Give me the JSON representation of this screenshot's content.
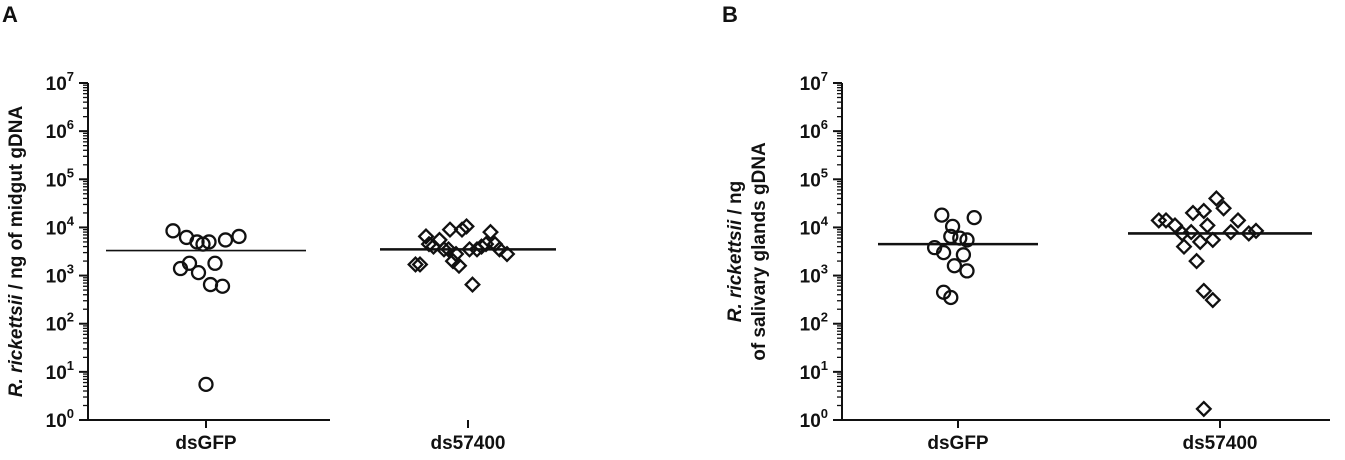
{
  "chart_data": [
    {
      "panel": "A",
      "type": "scatter",
      "ylabel_italic": "R. rickettsii",
      "ylabel_rest": " / ng of midgut gDNA",
      "ylabel_lines": [],
      "yscale": "log",
      "ylim": [
        1,
        10000000
      ],
      "y_tick_base": "10",
      "y_tick_exponents": [
        "0",
        "1",
        "2",
        "3",
        "4",
        "5",
        "6",
        "7"
      ],
      "categories": [
        "dsGFP",
        "ds57400"
      ],
      "series": [
        {
          "category": "dsGFP",
          "marker": "circle",
          "points": [
            8500,
            6200,
            5000,
            4500,
            5000,
            5500,
            6500,
            1400,
            1800,
            1150,
            1800,
            650,
            600,
            5.5
          ],
          "offsets": [
            -2.2,
            -1.3,
            -0.6,
            -0.2,
            0.2,
            1.3,
            2.2,
            -1.7,
            -1.1,
            -0.5,
            0.6,
            0.3,
            1.1,
            0
          ],
          "median": 3300
        },
        {
          "category": "ds57400",
          "marker": "diamond",
          "points": [
            1700,
            1700,
            6500,
            4500,
            4000,
            5500,
            3500,
            3500,
            9000,
            2000,
            2800,
            1600,
            9000,
            10500,
            3500,
            650,
            3500,
            4000,
            4500,
            8000,
            4500,
            3500,
            2800
          ],
          "offsets": [
            -3.5,
            -3.2,
            -2.8,
            -2.6,
            -2.3,
            -1.9,
            -1.6,
            -1.3,
            -1.2,
            -1.0,
            -0.8,
            -0.6,
            -0.4,
            -0.1,
            0.1,
            0.3,
            0.6,
            0.9,
            1.2,
            1.5,
            1.8,
            2.1,
            2.6
          ],
          "median": 3500
        }
      ]
    },
    {
      "panel": "B",
      "type": "scatter",
      "ylabel_italic": "R. rickettsii",
      "ylabel_rest": " / ng",
      "ylabel_lines": [
        "of salivary glands gDNA"
      ],
      "yscale": "log",
      "ylim": [
        1,
        10000000
      ],
      "y_tick_base": "10",
      "y_tick_exponents": [
        "0",
        "1",
        "2",
        "3",
        "4",
        "5",
        "6",
        "7"
      ],
      "categories": [
        "dsGFP",
        "ds57400"
      ],
      "series": [
        {
          "category": "dsGFP",
          "marker": "circle",
          "points": [
            18000,
            10500,
            16000,
            6500,
            6000,
            5500,
            3800,
            3000,
            2700,
            1600,
            1250,
            450,
            350
          ],
          "offsets": [
            -0.9,
            -0.3,
            0.9,
            -0.4,
            0.1,
            0.5,
            -1.3,
            -0.8,
            0.3,
            -0.2,
            0.5,
            -0.8,
            -0.4
          ],
          "median": 4500
        },
        {
          "category": "ds57400",
          "marker": "diamond",
          "points": [
            14000,
            14000,
            11000,
            7500,
            4000,
            8000,
            20000,
            2000,
            5000,
            22000,
            11000,
            5500,
            40000,
            25000,
            8000,
            14000,
            7500,
            8500,
            480,
            310,
            1.7
          ],
          "offsets": [
            -3.4,
            -3.0,
            -2.5,
            -2.1,
            -2.0,
            -1.6,
            -1.5,
            -1.3,
            -1.1,
            -0.9,
            -0.7,
            -0.4,
            -0.2,
            0.2,
            0.6,
            1.0,
            1.6,
            2.0,
            -0.9,
            -0.4,
            -0.9
          ],
          "median": 7500
        }
      ]
    }
  ]
}
